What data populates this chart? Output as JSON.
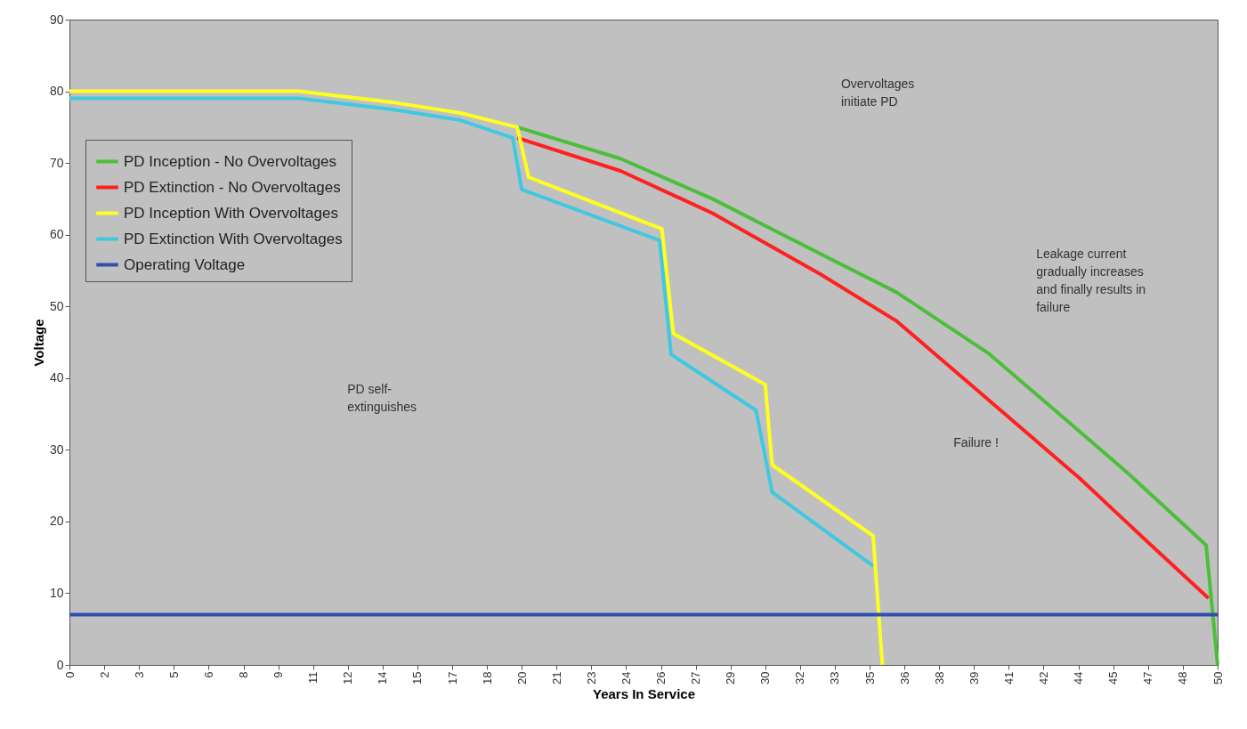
{
  "chart_data": {
    "type": "line",
    "xlabel": "Years In Service",
    "ylabel": "Voltage",
    "xlim": [
      0,
      50
    ],
    "ylim": [
      0,
      90
    ],
    "yticks": [
      0,
      10,
      20,
      30,
      40,
      50,
      60,
      70,
      80,
      90
    ],
    "xticks": [
      0,
      {
        "value": 1.52,
        "label": "2"
      },
      {
        "value": 3.03,
        "label": "3"
      },
      {
        "value": 4.55,
        "label": "5"
      },
      {
        "value": 6.06,
        "label": "6"
      },
      {
        "value": 7.58,
        "label": "8"
      },
      {
        "value": 9.09,
        "label": "9"
      },
      {
        "value": 10.61,
        "label": "11"
      },
      {
        "value": 12.12,
        "label": "12"
      },
      {
        "value": 13.64,
        "label": "14"
      },
      {
        "value": 15.15,
        "label": "15"
      },
      {
        "value": 16.67,
        "label": "17"
      },
      {
        "value": 18.18,
        "label": "18"
      },
      {
        "value": 19.7,
        "label": "20"
      },
      {
        "value": 21.21,
        "label": "21"
      },
      {
        "value": 22.73,
        "label": "23"
      },
      {
        "value": 24.24,
        "label": "24"
      },
      {
        "value": 25.76,
        "label": "26"
      },
      {
        "value": 27.27,
        "label": "27"
      },
      {
        "value": 28.79,
        "label": "29"
      },
      {
        "value": 30.3,
        "label": "30"
      },
      {
        "value": 31.82,
        "label": "32"
      },
      {
        "value": 33.33,
        "label": "33"
      },
      {
        "value": 34.85,
        "label": "35"
      },
      {
        "value": 36.36,
        "label": "36"
      },
      {
        "value": 37.88,
        "label": "38"
      },
      {
        "value": 39.39,
        "label": "39"
      },
      {
        "value": 40.91,
        "label": "41"
      },
      {
        "value": 42.42,
        "label": "42"
      },
      {
        "value": 43.94,
        "label": "44"
      },
      {
        "value": 45.45,
        "label": "45"
      },
      {
        "value": 46.97,
        "label": "47"
      },
      {
        "value": 48.48,
        "label": "48"
      },
      50
    ],
    "grid": false,
    "legend": "top left",
    "marker": "none",
    "line_style": "solid",
    "series": [
      {
        "name": "PD Inception - No Overvoltages",
        "color": "#4cbf3a",
        "x": [
          19.5,
          24,
          28,
          32.9,
          36,
          40,
          43.1,
          46,
          49.5,
          50
        ],
        "values": [
          75,
          70.6,
          65,
          57,
          52,
          43.5,
          35,
          27,
          16.7,
          0
        ]
      },
      {
        "name": "PD Extinction - No Overvoltages",
        "color": "#ff2020",
        "x": [
          19.5,
          24,
          28,
          32.7,
          36,
          40.7,
          44,
          47,
          49.6
        ],
        "values": [
          73.5,
          68.9,
          63,
          54.5,
          48,
          35.1,
          26,
          17,
          9.3
        ]
      },
      {
        "name": "PD Inception With Overvoltages",
        "color": "#ffff20",
        "x": [
          0,
          10,
          14,
          17,
          19.5,
          20,
          25.8,
          26.3,
          30.3,
          30.6,
          35,
          35.4
        ],
        "values": [
          80,
          80,
          78.5,
          77,
          75,
          68,
          60.8,
          46.2,
          39.1,
          27.9,
          18,
          0
        ]
      },
      {
        "name": "PD Extinction With Overvoltages",
        "color": "#40c8e0",
        "x": [
          0,
          10,
          14,
          17,
          19.3,
          19.7,
          25.7,
          26.2,
          29.9,
          30.6,
          35
        ],
        "values": [
          79,
          79,
          77.5,
          76,
          73.5,
          66.3,
          59.2,
          43.3,
          35.5,
          24.1,
          13.8
        ]
      },
      {
        "name": "Operating Voltage",
        "color": "#3050b0",
        "x": [
          0,
          50
        ],
        "values": [
          7,
          7
        ]
      }
    ],
    "annotations": [
      "Overvoltages\ninitiate PD",
      "PD self-\nextinguishes",
      "Leakage current\ngradually increases\nand finally results in\nfailure",
      "Failure !"
    ]
  }
}
